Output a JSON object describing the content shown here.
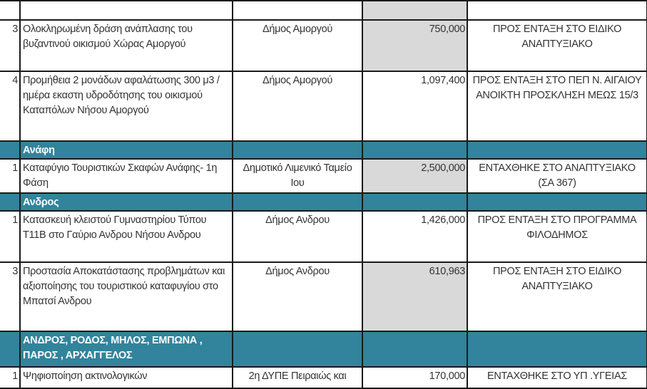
{
  "colors": {
    "band": "#31849b",
    "highlight": "#d9d9d9"
  },
  "rows": [
    {
      "type": "item",
      "num": "",
      "desc": "",
      "muni": "",
      "amount": "",
      "status": "",
      "gray": true
    },
    {
      "type": "item",
      "num": "3",
      "desc": "Ολοκληρωμένη δράση ανάπλασης του βυζαντινού οικισμού Χώρας Αμοργού",
      "muni": "Δήμος Αμοργού",
      "amount": "750,000",
      "status": "ΠΡΟΣ ΕΝΤΑΞΗ ΣΤΟ ΕΙΔΙΚΟ ΑΝΑΠΤΥΞΙΑΚΟ",
      "gray": true
    },
    {
      "type": "item",
      "num": "4",
      "desc": "Προμήθεια 2  μονάδων αφαλάτωσης 300 μ3 / ημέρα εκαστη υδροδότησης του οικισμού Καταπόλων Νήσου Αμοργού",
      "muni": "Δήμος Αμοργού",
      "amount": "1,097,400",
      "status": "ΠΡΟΣ ΕΝΤΑΞΗ ΣΤΟ ΠΕΠ Ν. ΑΙΓΑΙΟΥ ΑΝΟΙΚΤΗ ΠΡΟΣΚΛΗΣΗ ΜΕΩΣ 15/3",
      "gray": false
    },
    {
      "type": "band",
      "label": "Ανάφη"
    },
    {
      "type": "item",
      "num": "1",
      "desc": "Καταφύγιο Τουριστικών Σκαφών Ανάφης- 1η Φάση",
      "muni": "Δημοτικό Λιμενικό Ταμείο Ιου",
      "amount": "2,500,000",
      "status": "ΕΝΤΑΧΘΗΚΕ ΣΤΟ ΑΝΑΠΤΥΞΙΑΚΟ (ΣΑ 367)",
      "gray": true
    },
    {
      "type": "band",
      "label": "Ανδρος"
    },
    {
      "type": "item",
      "num": "1",
      "desc": "Κατασκευή κλειστού Γυμναστηρίου Τύπου Τ11Β στο Γαύριο Ανδρου Νήσου Ανδρου",
      "muni": "Δήμος Ανδρου",
      "amount": "1,426,000",
      "status": "ΠΡΟΣ ΕΝΤΑΞΗ ΣΤΟ ΠΡΟΓΡΑΜΜΑ ΦΙΛΟΔΗΜΟΣ",
      "gray": false
    },
    {
      "type": "item",
      "num": "3",
      "desc": "Προστασία Αποκατάστασης προβλημάτων και αξιοποίησης του τουριστικού καταφυγίου στο Μπατσί Ανδρου",
      "muni": "Δήμος Ανδρου",
      "amount": "610,963",
      "status": "ΠΡΟΣ ΕΝΤΑΞΗ ΣΤΟ ΕΙΔΙΚΟ ΑΝΑΠΤΥΞΙΑΚΟ",
      "gray": true
    },
    {
      "type": "band",
      "label": "ΑΝΔΡΟΣ, ΡΟΔΟΣ, ΜΗΛΟΣ, ΕΜΠΩΝΑ , ΠΑΡΟΣ , ΑΡΧΑΓΓΕΛΟΣ"
    },
    {
      "type": "item",
      "num": "1",
      "desc": "Ψηφιοποίηση ακτινολογικών",
      "muni": "2η ΔΥΠΕ Πειραιώς και",
      "amount": "170,000",
      "status": "ΕΝΤΑΧΘΗΚΕ ΣΤΟ ΥΠ .ΥΓΕΙΑΣ",
      "gray": false
    }
  ]
}
